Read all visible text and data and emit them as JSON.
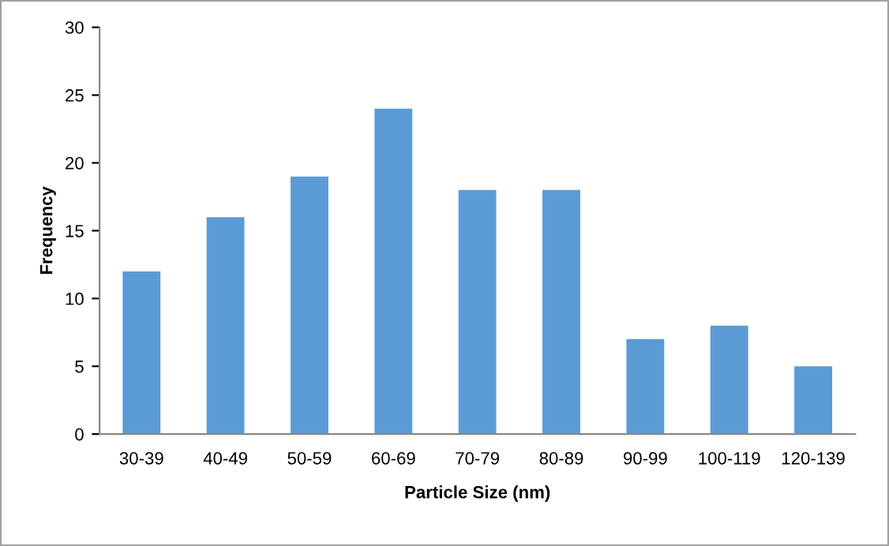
{
  "chart_data": {
    "type": "bar",
    "xlabel": "Particle Size (nm)",
    "ylabel": "Frequency",
    "categories": [
      "30-39",
      "40-49",
      "50-59",
      "60-69",
      "70-79",
      "80-89",
      "90-99",
      "100-119",
      "120-139"
    ],
    "values": [
      12,
      16,
      19,
      24,
      18,
      18,
      7,
      8,
      5
    ],
    "color": "#5b9bd5",
    "ylim": [
      0,
      30
    ],
    "yticks": [
      0,
      5,
      10,
      15,
      20,
      25,
      30
    ],
    "grid": false,
    "legend": false
  }
}
